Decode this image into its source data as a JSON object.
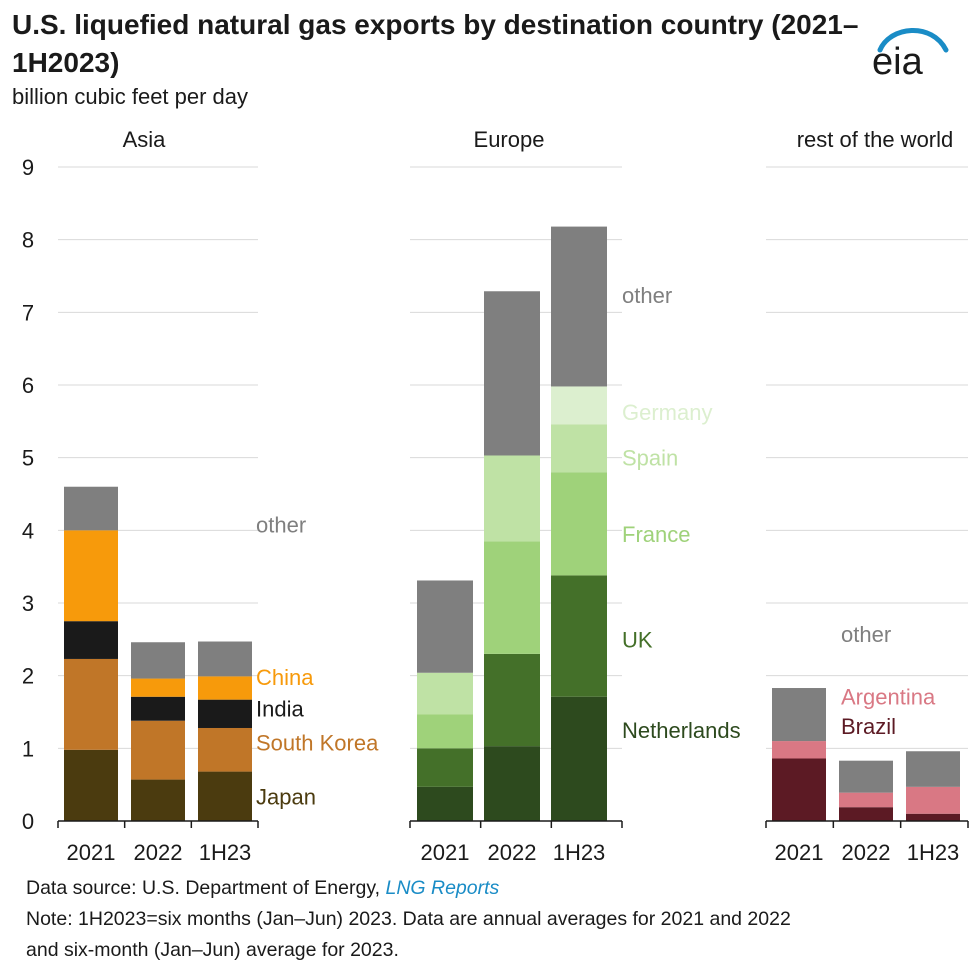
{
  "title": "U.S. liquefied natural gas exports by destination country (2021–1H2023)",
  "unit": "billion cubic feet per day",
  "logo_text": "eia",
  "colors": {
    "japan": "#4b3b0f",
    "south_korea": "#c07628",
    "india": "#1a1a1a",
    "china": "#f79a0b",
    "other": "#7f7f7f",
    "netherlands": "#2d4a1e",
    "uk": "#447029",
    "france": "#9fd27a",
    "spain": "#bfe2a5",
    "germany": "#dcefcf",
    "brazil": "#5c1a24",
    "argentina": "#d97884",
    "grid": "#d9d9d9",
    "other_label": "#7f7f7f",
    "logo_arc": "#1a8cc6"
  },
  "chart_data": {
    "type": "bar",
    "stacked": true,
    "ylim": [
      0,
      9
    ],
    "yticks": [
      "0",
      "1",
      "2",
      "3",
      "4",
      "5",
      "6",
      "7",
      "8",
      "9"
    ],
    "grid": true,
    "categories": [
      "2021",
      "2022",
      "1H23"
    ],
    "panels": [
      {
        "name": "Asia",
        "series": [
          {
            "name": "Japan",
            "color_key": "japan",
            "values": [
              0.98,
              0.57,
              0.68
            ]
          },
          {
            "name": "South Korea",
            "color_key": "south_korea",
            "values": [
              1.25,
              0.81,
              0.6
            ]
          },
          {
            "name": "India",
            "color_key": "india",
            "values": [
              0.52,
              0.33,
              0.39
            ]
          },
          {
            "name": "China",
            "color_key": "china",
            "values": [
              1.25,
              0.25,
              0.32
            ]
          },
          {
            "name": "other",
            "color_key": "other",
            "values": [
              0.6,
              0.5,
              0.48
            ]
          }
        ]
      },
      {
        "name": "Europe",
        "series": [
          {
            "name": "Netherlands",
            "color_key": "netherlands",
            "values": [
              0.47,
              1.03,
              1.71
            ]
          },
          {
            "name": "UK",
            "color_key": "uk",
            "values": [
              0.53,
              1.27,
              1.67
            ]
          },
          {
            "name": "France",
            "color_key": "france",
            "values": [
              0.47,
              1.55,
              1.42
            ]
          },
          {
            "name": "Spain",
            "color_key": "spain",
            "values": [
              0.57,
              1.18,
              0.66
            ]
          },
          {
            "name": "Germany",
            "color_key": "germany",
            "values": [
              0,
              0,
              0.52
            ]
          },
          {
            "name": "other",
            "color_key": "other",
            "values": [
              1.27,
              2.26,
              2.2
            ]
          }
        ]
      },
      {
        "name": "rest of the world",
        "series": [
          {
            "name": "Brazil",
            "color_key": "brazil",
            "values": [
              0.86,
              0.19,
              0.1
            ]
          },
          {
            "name": "Argentina",
            "color_key": "argentina",
            "values": [
              0.24,
              0.2,
              0.37
            ]
          },
          {
            "name": "other",
            "color_key": "other",
            "values": [
              0.73,
              0.44,
              0.49
            ]
          }
        ]
      }
    ],
    "labels": [
      {
        "panel": 0,
        "text": "other",
        "value": 4.08,
        "color_key": "other_label"
      },
      {
        "panel": 0,
        "text": "China",
        "value": 1.98,
        "color_key": "china"
      },
      {
        "panel": 0,
        "text": "India",
        "value": 1.55,
        "color_key": "india"
      },
      {
        "panel": 0,
        "text": "South Korea",
        "value": 1.08,
        "color_key": "south_korea"
      },
      {
        "panel": 0,
        "text": "Japan",
        "value": 0.34,
        "color_key": "japan"
      },
      {
        "panel": 1,
        "text": "other",
        "value": 7.24,
        "color_key": "other_label"
      },
      {
        "panel": 1,
        "text": "Germany",
        "value": 5.63,
        "color_key": "germany"
      },
      {
        "panel": 1,
        "text": "Spain",
        "value": 5.0,
        "color_key": "spain"
      },
      {
        "panel": 1,
        "text": "France",
        "value": 3.95,
        "color_key": "france"
      },
      {
        "panel": 1,
        "text": "UK",
        "value": 2.5,
        "color_key": "uk"
      },
      {
        "panel": 1,
        "text": "Netherlands",
        "value": 1.25,
        "color_key": "netherlands"
      },
      {
        "panel": 2,
        "text": "other",
        "value": 2.57,
        "color_key": "other_label"
      },
      {
        "panel": 2,
        "text": "Argentina",
        "value": 1.71,
        "color_key": "argentina"
      },
      {
        "panel": 2,
        "text": "Brazil",
        "value": 1.31,
        "color_key": "brazil"
      }
    ]
  },
  "footer": {
    "source_prefix": "Data source: U.S. Department of Energy, ",
    "source_link": "LNG Reports",
    "note_line1": "Note: 1H2023=six months (Jan–Jun) 2023. Data are annual averages for 2021 and 2022",
    "note_line2": "and six-month (Jan–Jun) average for 2023."
  }
}
